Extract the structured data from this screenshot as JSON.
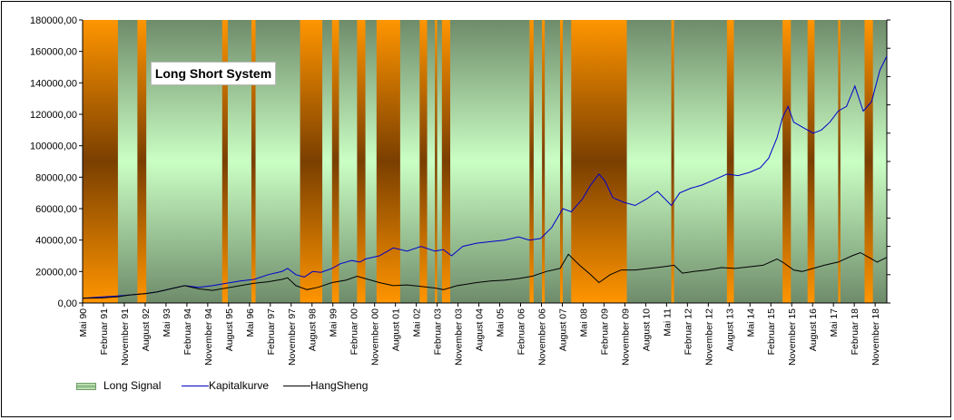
{
  "chart_data": {
    "type": "line",
    "title": "Long Short System",
    "ylim": [
      0,
      180000
    ],
    "y_ticks": [
      "0,00",
      "20000,00",
      "40000,00",
      "60000,00",
      "80000,00",
      "100000,00",
      "120000,00",
      "140000,00",
      "160000,00",
      "180000,00"
    ],
    "x_range": [
      1990.33,
      2019.25
    ],
    "x_tick_labels": [
      "Mai 90",
      "Februar 91",
      "November 91",
      "August 92",
      "Mai 93",
      "Februar 94",
      "November 94",
      "August 95",
      "Mai 96",
      "Februar 97",
      "November 97",
      "August 98",
      "Mai 99",
      "Februar 00",
      "November 00",
      "August 01",
      "Mai 02",
      "Februar 03",
      "November 03",
      "August 04",
      "Mai 05",
      "Februar 06",
      "November 06",
      "August 07",
      "Mai 08",
      "Februar 09",
      "November 09",
      "August 10",
      "Mai 11",
      "Februar 12",
      "November 12",
      "August 13",
      "Mai 14",
      "Februar 15",
      "November 15",
      "August 16",
      "Mai 17",
      "Februar 18",
      "November 18"
    ],
    "background_regions": [
      {
        "label": "Long Signal",
        "color": "#c6f5c0",
        "type": "band"
      },
      {
        "label": "Short",
        "color": "#ff9800"
      }
    ],
    "short_periods": [
      [
        1990.33,
        1991.6
      ],
      [
        1992.3,
        1992.62
      ],
      [
        1995.35,
        1995.55
      ],
      [
        1996.4,
        1996.55
      ],
      [
        1998.15,
        1998.95
      ],
      [
        1999.3,
        1999.55
      ],
      [
        2000.2,
        2000.5
      ],
      [
        2000.9,
        2001.75
      ],
      [
        2002.45,
        2002.72
      ],
      [
        2003.0,
        2003.08
      ],
      [
        2003.25,
        2003.55
      ],
      [
        2006.4,
        2006.55
      ],
      [
        2006.85,
        2006.95
      ],
      [
        2007.5,
        2007.6
      ],
      [
        2007.9,
        2009.9
      ],
      [
        2011.5,
        2011.6
      ],
      [
        2013.5,
        2013.75
      ],
      [
        2015.5,
        2015.8
      ],
      [
        2016.4,
        2016.65
      ],
      [
        2017.5,
        2017.58
      ],
      [
        2018.45,
        2018.75
      ]
    ],
    "series": [
      {
        "name": "Kapitalkurve",
        "color": "#0000cc",
        "x": [
          1990.33,
          1991.0,
          1991.6,
          1992.0,
          1992.6,
          1993.0,
          1993.5,
          1994.0,
          1994.5,
          1995.0,
          1995.5,
          1996.0,
          1996.5,
          1997.0,
          1997.5,
          1997.7,
          1998.0,
          1998.3,
          1998.6,
          1998.9,
          1999.3,
          1999.6,
          2000.0,
          2000.3,
          2000.5,
          2001.0,
          2001.5,
          2002.0,
          2002.5,
          2003.0,
          2003.3,
          2003.6,
          2004.0,
          2004.5,
          2005.0,
          2005.5,
          2006.0,
          2006.4,
          2006.8,
          2007.2,
          2007.6,
          2007.9,
          2008.3,
          2008.6,
          2008.9,
          2009.1,
          2009.4,
          2009.8,
          2010.2,
          2010.6,
          2011.0,
          2011.5,
          2011.8,
          2012.2,
          2012.6,
          2013.0,
          2013.5,
          2013.9,
          2014.3,
          2014.7,
          2015.0,
          2015.3,
          2015.5,
          2015.7,
          2015.9,
          2016.2,
          2016.6,
          2016.9,
          2017.2,
          2017.5,
          2017.8,
          2018.1,
          2018.4,
          2018.7,
          2019.0,
          2019.25
        ],
        "y": [
          3000,
          3800,
          4500,
          5000,
          6000,
          7000,
          9000,
          11000,
          10000,
          11000,
          12500,
          14000,
          15000,
          18000,
          20000,
          22000,
          18000,
          16500,
          20000,
          19500,
          22000,
          25000,
          27000,
          26000,
          28000,
          30000,
          35000,
          33000,
          36000,
          33000,
          34000,
          30000,
          36000,
          38000,
          39000,
          40000,
          42000,
          40000,
          41000,
          48000,
          60000,
          58000,
          66000,
          75000,
          82000,
          78000,
          67000,
          64000,
          62000,
          66000,
          71000,
          62000,
          70000,
          73000,
          75000,
          78000,
          82000,
          81000,
          83000,
          86000,
          92000,
          105000,
          118000,
          125000,
          115000,
          112000,
          108000,
          110000,
          115000,
          122000,
          125000,
          138000,
          122000,
          128000,
          148000,
          157000
        ]
      },
      {
        "name": "HangSheng",
        "color": "#000000",
        "x": [
          1990.33,
          1991.0,
          1991.6,
          1992.0,
          1992.6,
          1993.0,
          1993.5,
          1994.0,
          1994.5,
          1995.0,
          1995.5,
          1996.0,
          1996.5,
          1997.0,
          1997.5,
          1997.7,
          1998.0,
          1998.4,
          1998.8,
          1999.3,
          1999.8,
          2000.2,
          2000.6,
          2001.0,
          2001.5,
          2002.0,
          2002.5,
          2003.0,
          2003.3,
          2003.8,
          2004.5,
          2005.0,
          2005.5,
          2006.0,
          2006.5,
          2007.0,
          2007.5,
          2007.8,
          2008.2,
          2008.6,
          2008.9,
          2009.3,
          2009.7,
          2010.2,
          2010.7,
          2011.2,
          2011.6,
          2011.9,
          2012.3,
          2012.8,
          2013.3,
          2013.8,
          2014.3,
          2014.8,
          2015.3,
          2015.5,
          2015.9,
          2016.2,
          2016.6,
          2017.0,
          2017.5,
          2018.0,
          2018.3,
          2018.6,
          2018.9,
          2019.25
        ],
        "y": [
          3000,
          3200,
          4000,
          5000,
          6000,
          7000,
          9000,
          11000,
          9000,
          8000,
          9500,
          11000,
          12500,
          13500,
          15000,
          16000,
          11000,
          8500,
          10000,
          13000,
          14500,
          17000,
          15000,
          13000,
          11000,
          11500,
          10500,
          9500,
          8500,
          11000,
          13000,
          14000,
          14500,
          15500,
          17000,
          20000,
          22000,
          31000,
          24000,
          18000,
          13000,
          18000,
          21000,
          21000,
          22000,
          23000,
          24000,
          19000,
          20000,
          21000,
          22500,
          22000,
          23000,
          24000,
          28000,
          26000,
          21000,
          20000,
          22000,
          24000,
          26000,
          30000,
          32000,
          29000,
          26000,
          29000
        ]
      }
    ],
    "legend": {
      "position": "bottom",
      "items": [
        {
          "label": "Long Signal",
          "kind": "band"
        },
        {
          "label": "Kapitalkurve",
          "kind": "line",
          "color": "#0000cc"
        },
        {
          "label": "HangSheng",
          "kind": "line",
          "color": "#000000"
        }
      ]
    }
  }
}
